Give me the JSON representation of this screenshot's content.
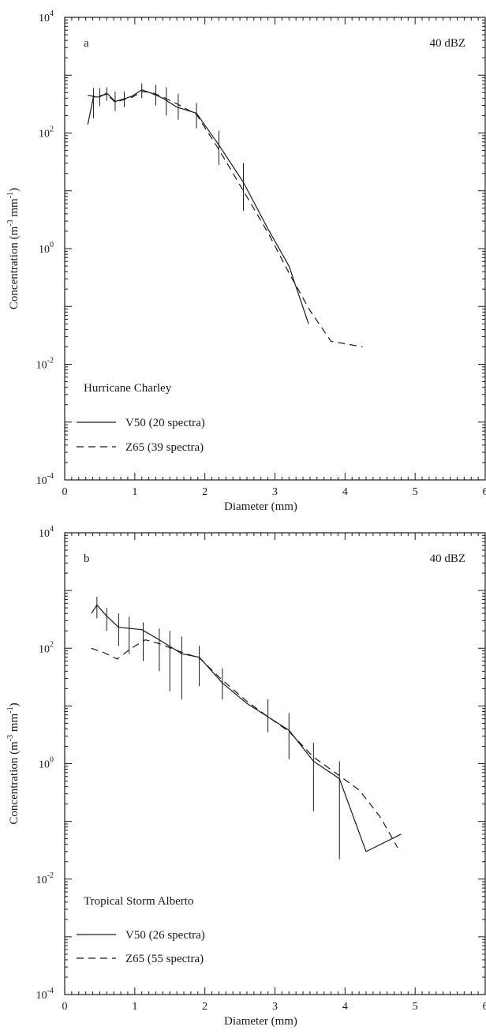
{
  "chart_data": [
    {
      "type": "line",
      "panel_label": "a",
      "reflectivity": "40 dBZ",
      "storm": "Hurricane Charley",
      "xlabel": "Diameter (mm)",
      "ylabel": "Concentration (m",
      "ylabel_sup1": "-3",
      "ylabel_mid": " mm",
      "ylabel_sup2": "-1",
      "ylabel_end": ")",
      "xlim": [
        0,
        6
      ],
      "ylim": [
        0.0001,
        10000
      ],
      "yscale": "log",
      "x_ticks": [
        "0",
        "1",
        "2",
        "3",
        "4",
        "5",
        "6"
      ],
      "y_ticks": [
        {
          "value": 0.0001,
          "base": "10",
          "exp": "-4"
        },
        {
          "value": 0.01,
          "base": "10",
          "exp": "-2"
        },
        {
          "value": 1,
          "base": "10",
          "exp": "0"
        },
        {
          "value": 100,
          "base": "10",
          "exp": "2"
        },
        {
          "value": 10000,
          "base": "10",
          "exp": "4"
        }
      ],
      "legend_position": "bottom-left",
      "series": [
        {
          "name": "V50 (20 spectra)",
          "style": "solid",
          "x": [
            0.33,
            0.41,
            0.5,
            0.6,
            0.72,
            0.85,
            0.97,
            1.1,
            1.25,
            1.4,
            1.6,
            1.88,
            2.2,
            2.55,
            2.9,
            3.2,
            3.48
          ],
          "y": [
            140,
            420,
            420,
            490,
            350,
            390,
            440,
            560,
            480,
            400,
            280,
            220,
            62,
            14,
            2.2,
            0.5,
            0.05
          ],
          "error_bars": [
            {
              "x": 0.41,
              "low": 180,
              "high": 600
            },
            {
              "x": 0.5,
              "low": 290,
              "high": 600
            },
            {
              "x": 0.6,
              "low": 360,
              "high": 620
            },
            {
              "x": 0.72,
              "low": 240,
              "high": 520
            },
            {
              "x": 0.85,
              "low": 280,
              "high": 520
            },
            {
              "x": 1.1,
              "low": 400,
              "high": 720
            },
            {
              "x": 1.3,
              "low": 300,
              "high": 680
            },
            {
              "x": 1.45,
              "low": 200,
              "high": 620
            },
            {
              "x": 1.62,
              "low": 170,
              "high": 480
            },
            {
              "x": 1.88,
              "low": 120,
              "high": 330
            },
            {
              "x": 2.2,
              "low": 28,
              "high": 110
            },
            {
              "x": 2.55,
              "low": 4.5,
              "high": 30
            }
          ]
        },
        {
          "name": "Z65 (39 spectra)",
          "style": "dashed",
          "x": [
            0.33,
            0.41,
            0.5,
            0.6,
            0.72,
            0.85,
            0.97,
            1.1,
            1.25,
            1.4,
            1.6,
            1.88,
            2.2,
            2.55,
            2.9,
            3.2,
            3.5,
            3.8,
            4.25
          ],
          "y": [
            450,
            430,
            440,
            470,
            340,
            380,
            420,
            520,
            500,
            420,
            320,
            210,
            52,
            10,
            1.9,
            0.38,
            0.085,
            0.025,
            0.02
          ]
        }
      ]
    },
    {
      "type": "line",
      "panel_label": "b",
      "reflectivity": "40 dBZ",
      "storm": "Tropical Storm Alberto",
      "xlabel": "Diameter (mm)",
      "ylabel": "Concentration (m",
      "ylabel_sup1": "-3",
      "ylabel_mid": " mm",
      "ylabel_sup2": "-1",
      "ylabel_end": ")",
      "xlim": [
        0,
        6
      ],
      "ylim": [
        0.0001,
        10000
      ],
      "yscale": "log",
      "x_ticks": [
        "0",
        "1",
        "2",
        "3",
        "4",
        "5",
        "6"
      ],
      "y_ticks": [
        {
          "value": 0.0001,
          "base": "10",
          "exp": "-4"
        },
        {
          "value": 0.01,
          "base": "10",
          "exp": "-2"
        },
        {
          "value": 1,
          "base": "10",
          "exp": "0"
        },
        {
          "value": 100,
          "base": "10",
          "exp": "2"
        },
        {
          "value": 10000,
          "base": "10",
          "exp": "4"
        }
      ],
      "legend_position": "bottom-left",
      "series": [
        {
          "name": "V50 (26 spectra)",
          "style": "solid",
          "x": [
            0.38,
            0.46,
            0.6,
            0.77,
            1.1,
            1.35,
            1.67,
            1.92,
            2.25,
            2.6,
            2.9,
            3.2,
            3.55,
            3.92,
            4.3,
            4.8
          ],
          "y": [
            400,
            560,
            360,
            230,
            210,
            140,
            80,
            70,
            25,
            11,
            6.5,
            3.8,
            1.1,
            0.55,
            0.03,
            0.06
          ],
          "error_bars": [
            {
              "x": 0.46,
              "low": 330,
              "high": 780
            },
            {
              "x": 0.6,
              "low": 200,
              "high": 500
            },
            {
              "x": 0.77,
              "low": 110,
              "high": 400
            },
            {
              "x": 0.92,
              "low": 80,
              "high": 350
            },
            {
              "x": 1.12,
              "low": 60,
              "high": 280
            },
            {
              "x": 1.35,
              "low": 40,
              "high": 220
            },
            {
              "x": 1.5,
              "low": 18,
              "high": 200
            },
            {
              "x": 1.67,
              "low": 13,
              "high": 160
            },
            {
              "x": 1.92,
              "low": 22,
              "high": 110
            },
            {
              "x": 2.25,
              "low": 13,
              "high": 45
            },
            {
              "x": 2.9,
              "low": 3.5,
              "high": 13
            },
            {
              "x": 3.2,
              "low": 1.2,
              "high": 7.5
            },
            {
              "x": 3.55,
              "low": 0.15,
              "high": 2.3
            },
            {
              "x": 3.92,
              "low": 0.022,
              "high": 1.1
            }
          ]
        },
        {
          "name": "Z65 (55 spectra)",
          "style": "dashed",
          "x": [
            0.38,
            0.55,
            0.75,
            0.95,
            1.15,
            1.35,
            1.67,
            1.92,
            2.25,
            2.6,
            2.9,
            3.2,
            3.55,
            3.92,
            4.2,
            4.5,
            4.75
          ],
          "y": [
            100,
            85,
            65,
            100,
            140,
            120,
            85,
            68,
            28,
            12,
            6.5,
            3.6,
            1.3,
            0.62,
            0.35,
            0.12,
            0.035
          ]
        }
      ]
    }
  ]
}
